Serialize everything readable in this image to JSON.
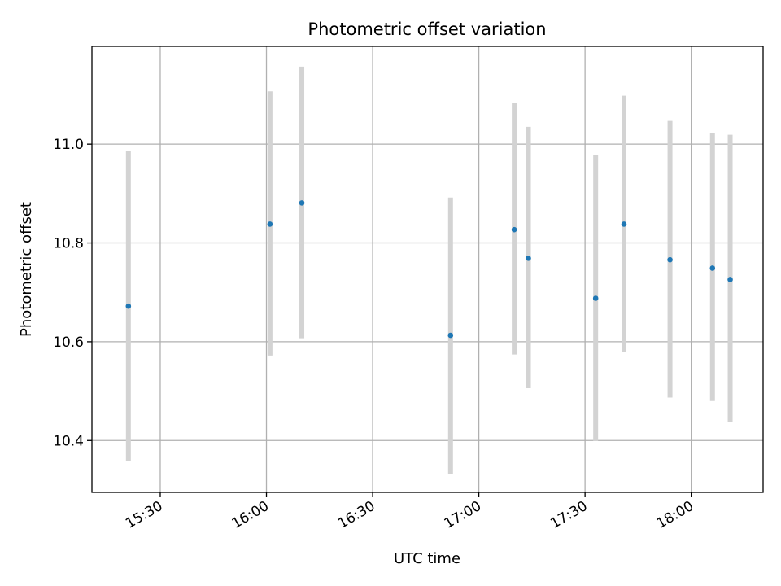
{
  "chart_data": {
    "type": "scatter",
    "title": "Photometric offset variation",
    "xlabel": "UTC time",
    "ylabel": "Photometric offset",
    "x_tick_labels": [
      "15:30",
      "16:00",
      "16:30",
      "17:00",
      "17:30",
      "18:00"
    ],
    "x_tick_minutes": [
      930,
      960,
      990,
      1020,
      1050,
      1080
    ],
    "xlim_labels": [
      "15:11",
      "18:20"
    ],
    "y_ticks": [
      "10.4",
      "10.6",
      "10.8",
      "11.0"
    ],
    "y_tick_values": [
      10.4,
      10.6,
      10.8,
      11.0
    ],
    "ylim": [
      10.295,
      11.198
    ],
    "grid": true,
    "marker_color": "#1f77b4",
    "errorbar_color": "#d3d3d3",
    "points": [
      {
        "time": "15:21",
        "y": 10.672,
        "low": 10.358,
        "high": 10.987
      },
      {
        "time": "16:01",
        "y": 10.838,
        "low": 10.572,
        "high": 11.107
      },
      {
        "time": "16:10",
        "y": 10.881,
        "low": 10.607,
        "high": 11.157
      },
      {
        "time": "16:52",
        "y": 10.613,
        "low": 10.332,
        "high": 10.892
      },
      {
        "time": "17:10",
        "y": 10.827,
        "low": 10.574,
        "high": 11.083
      },
      {
        "time": "17:14",
        "y": 10.769,
        "low": 10.506,
        "high": 11.035
      },
      {
        "time": "17:33",
        "y": 10.688,
        "low": 10.399,
        "high": 10.978
      },
      {
        "time": "17:41",
        "y": 10.838,
        "low": 10.58,
        "high": 11.098
      },
      {
        "time": "17:54",
        "y": 10.766,
        "low": 10.487,
        "high": 11.047
      },
      {
        "time": "18:06",
        "y": 10.749,
        "low": 10.48,
        "high": 11.022
      },
      {
        "time": "18:11",
        "y": 10.726,
        "low": 10.437,
        "high": 11.019
      }
    ]
  }
}
